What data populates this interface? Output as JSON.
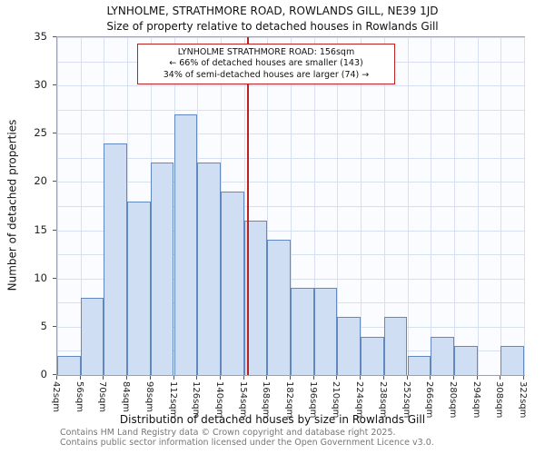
{
  "chart_data": {
    "type": "bar",
    "title": "LYNHOLME, STRATHMORE ROAD, ROWLANDS GILL, NE39 1JD",
    "subtitle": "Size of property relative to detached houses in Rowlands Gill",
    "xlabel": "Distribution of detached houses by size in Rowlands Gill",
    "ylabel": "Number of detached properties",
    "x_range": [
      42,
      322
    ],
    "bin_size": 14,
    "x_tick_labels": [
      "42sqm",
      "56sqm",
      "70sqm",
      "84sqm",
      "98sqm",
      "112sqm",
      "126sqm",
      "140sqm",
      "154sqm",
      "168sqm",
      "182sqm",
      "196sqm",
      "210sqm",
      "224sqm",
      "238sqm",
      "252sqm",
      "266sqm",
      "280sqm",
      "294sqm",
      "308sqm",
      "322sqm"
    ],
    "values": [
      2,
      8,
      24,
      18,
      22,
      27,
      22,
      19,
      16,
      14,
      9,
      9,
      6,
      4,
      6,
      2,
      4,
      3,
      0,
      3
    ],
    "ylim": [
      0,
      35
    ],
    "ytick_step": 5,
    "ygrid_minor_step": 2.5,
    "grid": true,
    "legend": "none",
    "marker": {
      "value": 156,
      "label": "156sqm"
    },
    "annotation": {
      "lines": [
        "LYNHOLME STRATHMORE ROAD: 156sqm",
        "← 66% of detached houses are smaller (143)",
        "34% of semi-detached houses are larger (74) →"
      ]
    },
    "colors": {
      "bar_fill": "#cfdef2",
      "bar_edge": "#6189c0",
      "grid": "#d7dfF0",
      "marker": "#bb2222"
    }
  },
  "footer": {
    "line1": "Contains HM Land Registry data © Crown copyright and database right 2025.",
    "line2": "Contains public sector information licensed under the Open Government Licence v3.0."
  }
}
